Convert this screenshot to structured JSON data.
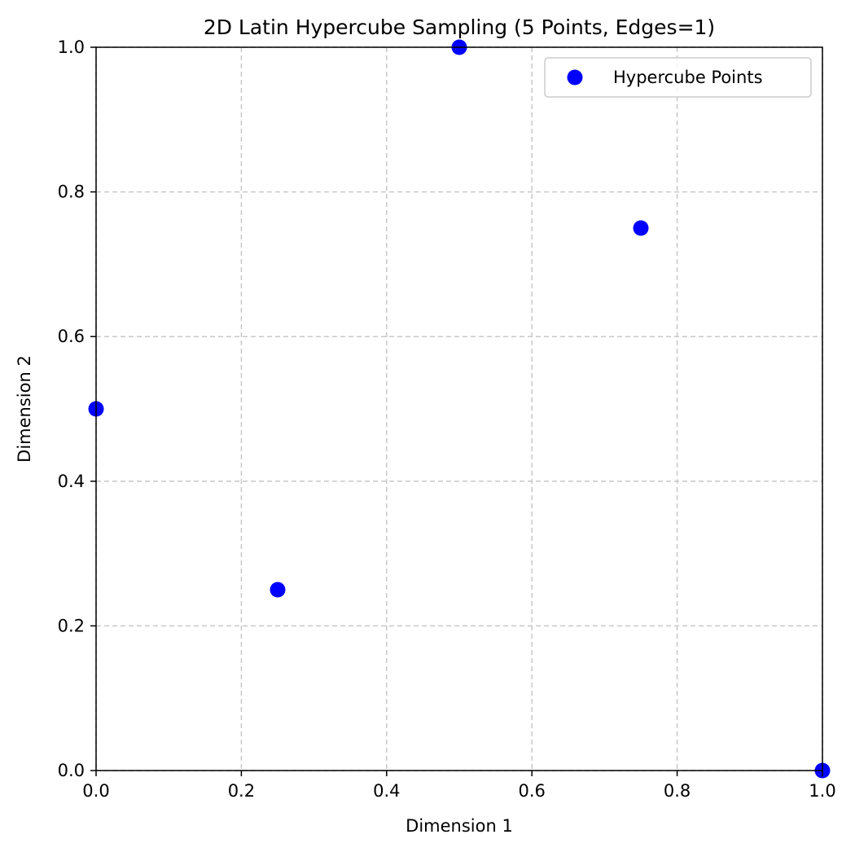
{
  "chart_data": {
    "type": "scatter",
    "title": "2D Latin Hypercube Sampling (5 Points, Edges=1)",
    "xlabel": "Dimension 1",
    "ylabel": "Dimension 2",
    "xlim": [
      0,
      1
    ],
    "ylim": [
      0,
      1
    ],
    "xticks": [
      0.0,
      0.2,
      0.4,
      0.6,
      0.8,
      1.0
    ],
    "yticks": [
      0.0,
      0.2,
      0.4,
      0.6,
      0.8,
      1.0
    ],
    "xtick_labels": [
      "0.0",
      "0.2",
      "0.4",
      "0.6",
      "0.8",
      "1.0"
    ],
    "ytick_labels": [
      "0.0",
      "0.2",
      "0.4",
      "0.6",
      "0.8",
      "1.0"
    ],
    "grid": true,
    "legend_position": "top-right",
    "series": [
      {
        "name": "Hypercube Points",
        "color": "#0000ff",
        "x": [
          0.0,
          0.25,
          0.5,
          0.75,
          1.0
        ],
        "y": [
          0.5,
          0.25,
          1.0,
          0.75,
          0.0
        ]
      }
    ]
  }
}
